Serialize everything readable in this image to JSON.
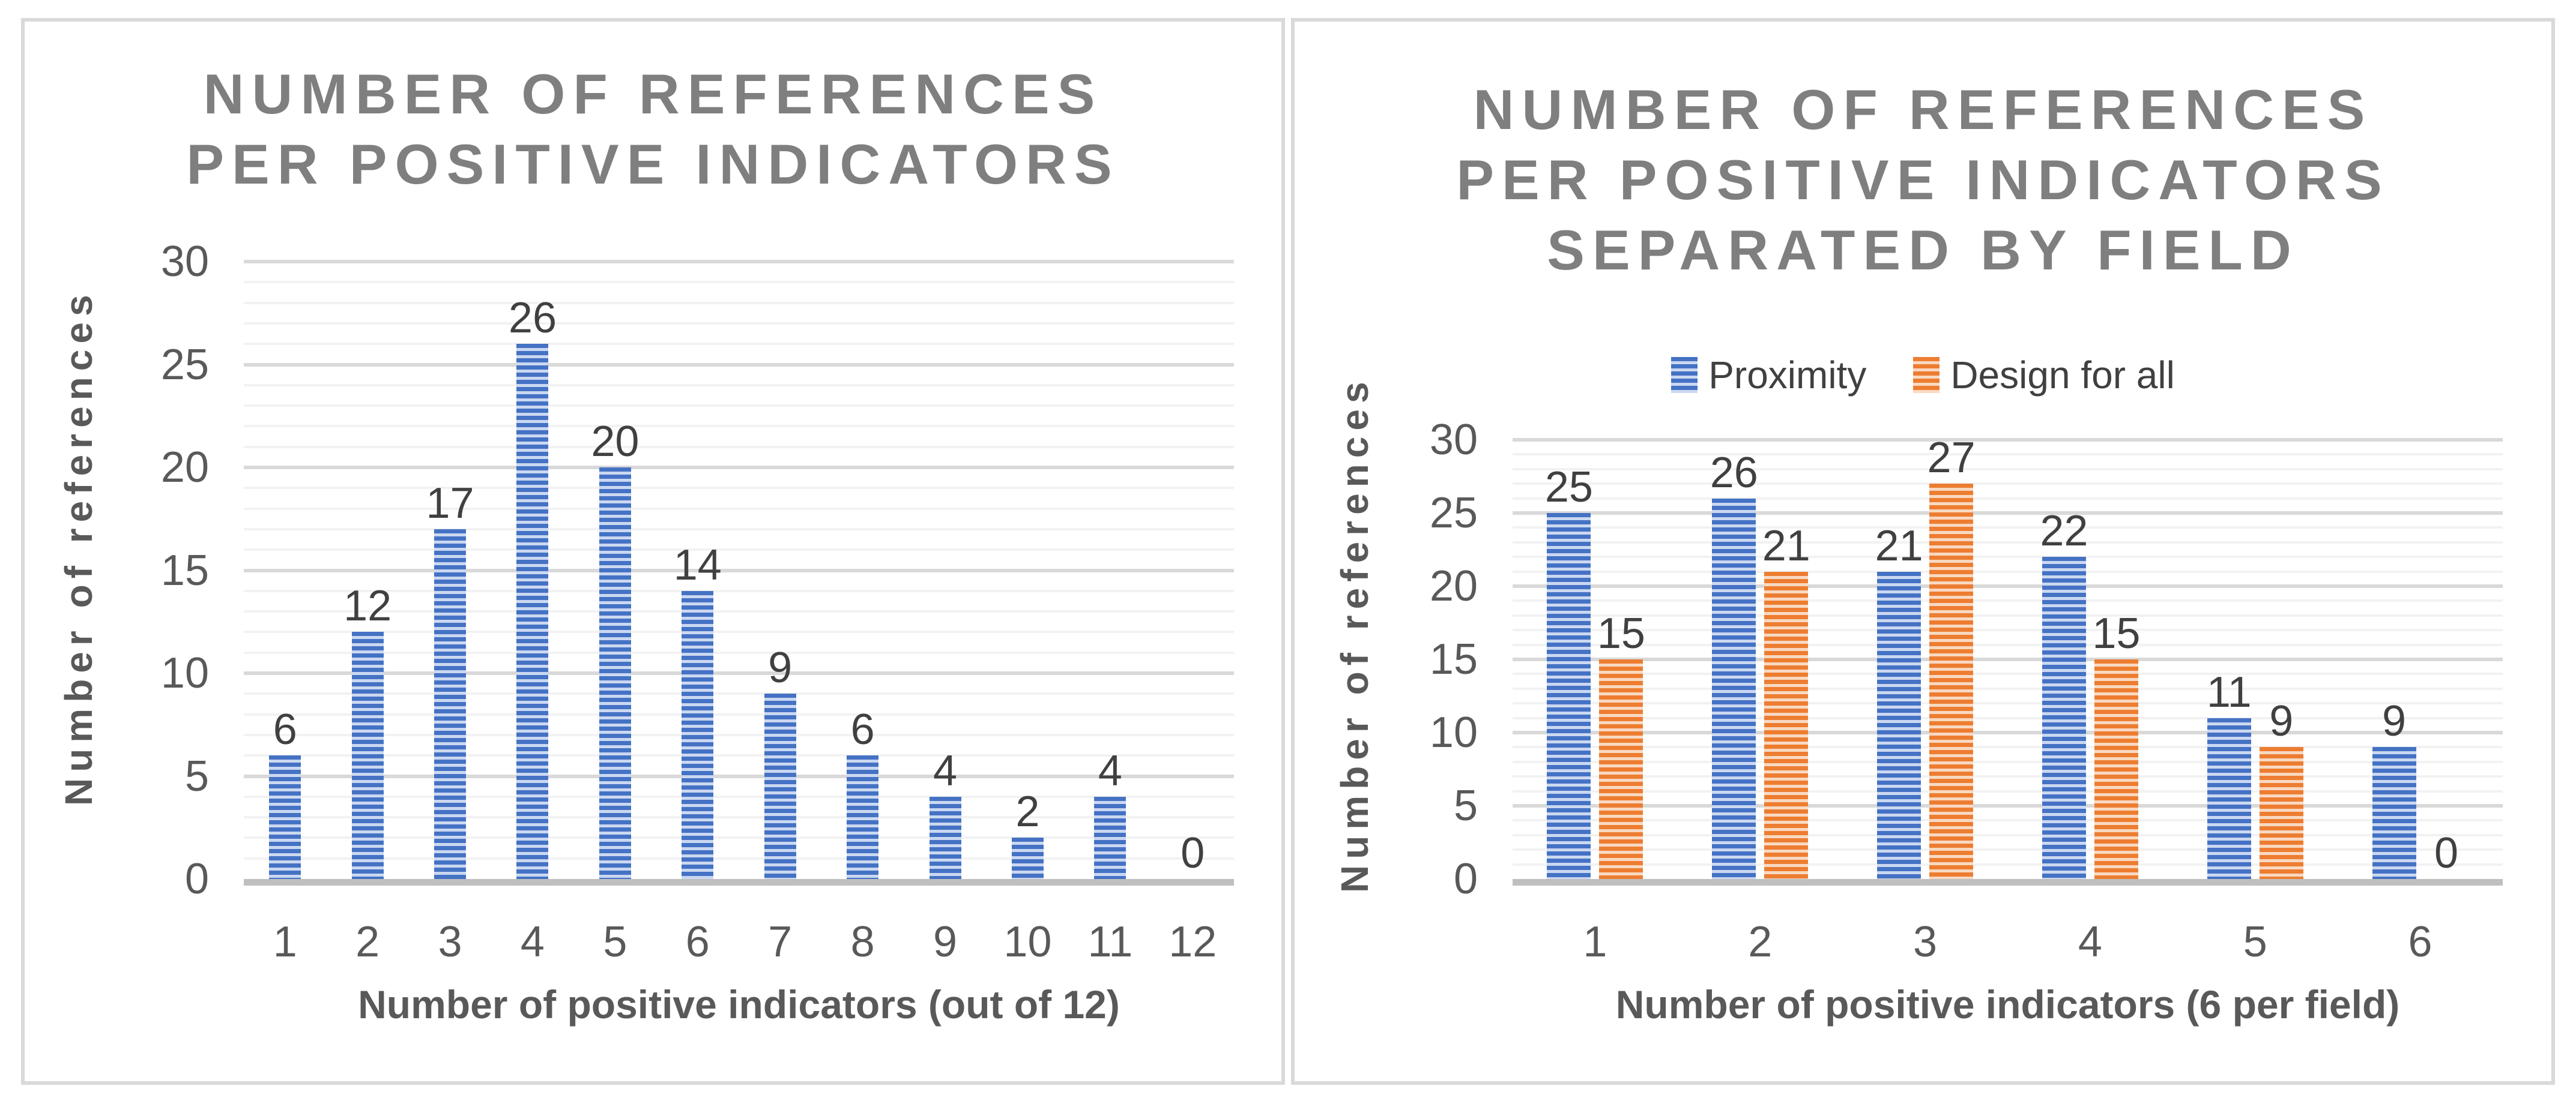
{
  "chart_data": [
    {
      "type": "bar",
      "title": "NUMBER OF REFERENCES PER POSITIVE INDICATORS",
      "title_lines": [
        "NUMBER OF REFERENCES",
        "PER POSITIVE INDICATORS"
      ],
      "categories": [
        "1",
        "2",
        "3",
        "4",
        "5",
        "6",
        "7",
        "8",
        "9",
        "10",
        "11",
        "12"
      ],
      "values": [
        6,
        12,
        17,
        26,
        20,
        14,
        9,
        6,
        4,
        2,
        4,
        0
      ],
      "xlabel": "Number of positive indicators (out of 12)",
      "ylabel": "Number of references",
      "ylim": [
        0,
        30
      ],
      "y_ticks": [
        0,
        5,
        10,
        15,
        20,
        25,
        30
      ],
      "grid": "horizontal, minor every 1 unit, major every 5 units",
      "legend_position": "none",
      "data_labels": true,
      "bar_color": "#4472C4",
      "bar_color_light": "#CBD8F1"
    },
    {
      "type": "bar",
      "title": "NUMBER OF REFERENCES PER POSITIVE INDICATORS SEPARATED BY FIELD",
      "title_lines": [
        "NUMBER OF REFERENCES",
        "PER POSITIVE INDICATORS",
        "SEPARATED BY FIELD"
      ],
      "categories": [
        "1",
        "2",
        "3",
        "4",
        "5",
        "6"
      ],
      "series": [
        {
          "name": "Proximity",
          "values": [
            25,
            26,
            21,
            22,
            11,
            9
          ],
          "color": "#4472C4",
          "color_light": "#CBD8F1"
        },
        {
          "name": "Design for all",
          "values": [
            15,
            21,
            27,
            15,
            9,
            0
          ],
          "color": "#ED7D31",
          "color_light": "#F9D9C2"
        }
      ],
      "xlabel": "Number of positive indicators (6 per field)",
      "ylabel": "Number of references",
      "ylim": [
        0,
        30
      ],
      "y_ticks": [
        0,
        5,
        10,
        15,
        20,
        25,
        30
      ],
      "grid": "horizontal, minor every 1 unit, major every 5 units",
      "legend_position": "top",
      "data_labels": true
    }
  ],
  "style": {
    "title_color": "#7F7F7F",
    "tick_color": "#595959",
    "data_label_color": "#404040",
    "axis_title_color": "#595959",
    "grid_minor_color": "#F2F2F2",
    "grid_major_color": "#D9D9D9",
    "axis_line_color": "#BFBFBF",
    "panel_border_color": "#D9D9D9",
    "background": "#FFFFFF"
  }
}
